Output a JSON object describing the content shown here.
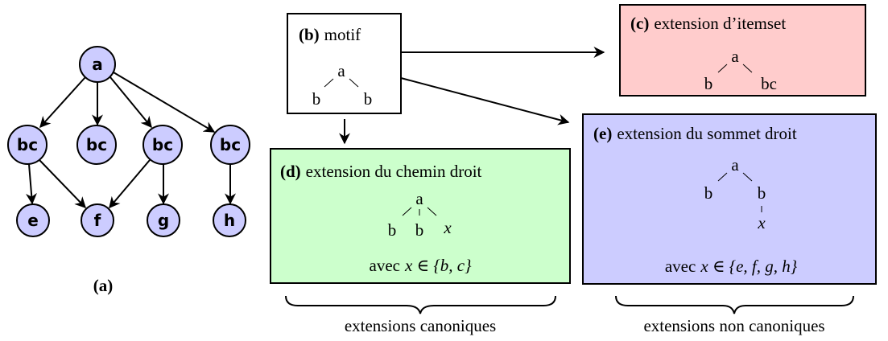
{
  "graph": {
    "nodes": [
      "a",
      "bc",
      "bc",
      "bc",
      "bc",
      "e",
      "f",
      "g",
      "h"
    ],
    "caption": "(a)"
  },
  "panels": {
    "b": {
      "label": "(b)",
      "title": "motif",
      "tree": [
        "a",
        "b",
        "b"
      ]
    },
    "c": {
      "label": "(c)",
      "title": "extension d’itemset",
      "tree": [
        "a",
        "b",
        "bc"
      ]
    },
    "d": {
      "label": "(d)",
      "title": "extension du chemin droit",
      "tree": [
        "a",
        "b",
        "b",
        "x"
      ],
      "condition": {
        "prefix": "avec",
        "math": "x ∈ {b, c}"
      }
    },
    "e": {
      "label": "(e)",
      "title": "extension du sommet droit",
      "tree": [
        "a",
        "b",
        "b",
        "x"
      ],
      "condition": {
        "prefix": "avec",
        "math": "x ∈ {e, f, g, h}"
      }
    }
  },
  "braces": {
    "canonical": "extensions canoniques",
    "non_canonical": "extensions non canoniques"
  }
}
